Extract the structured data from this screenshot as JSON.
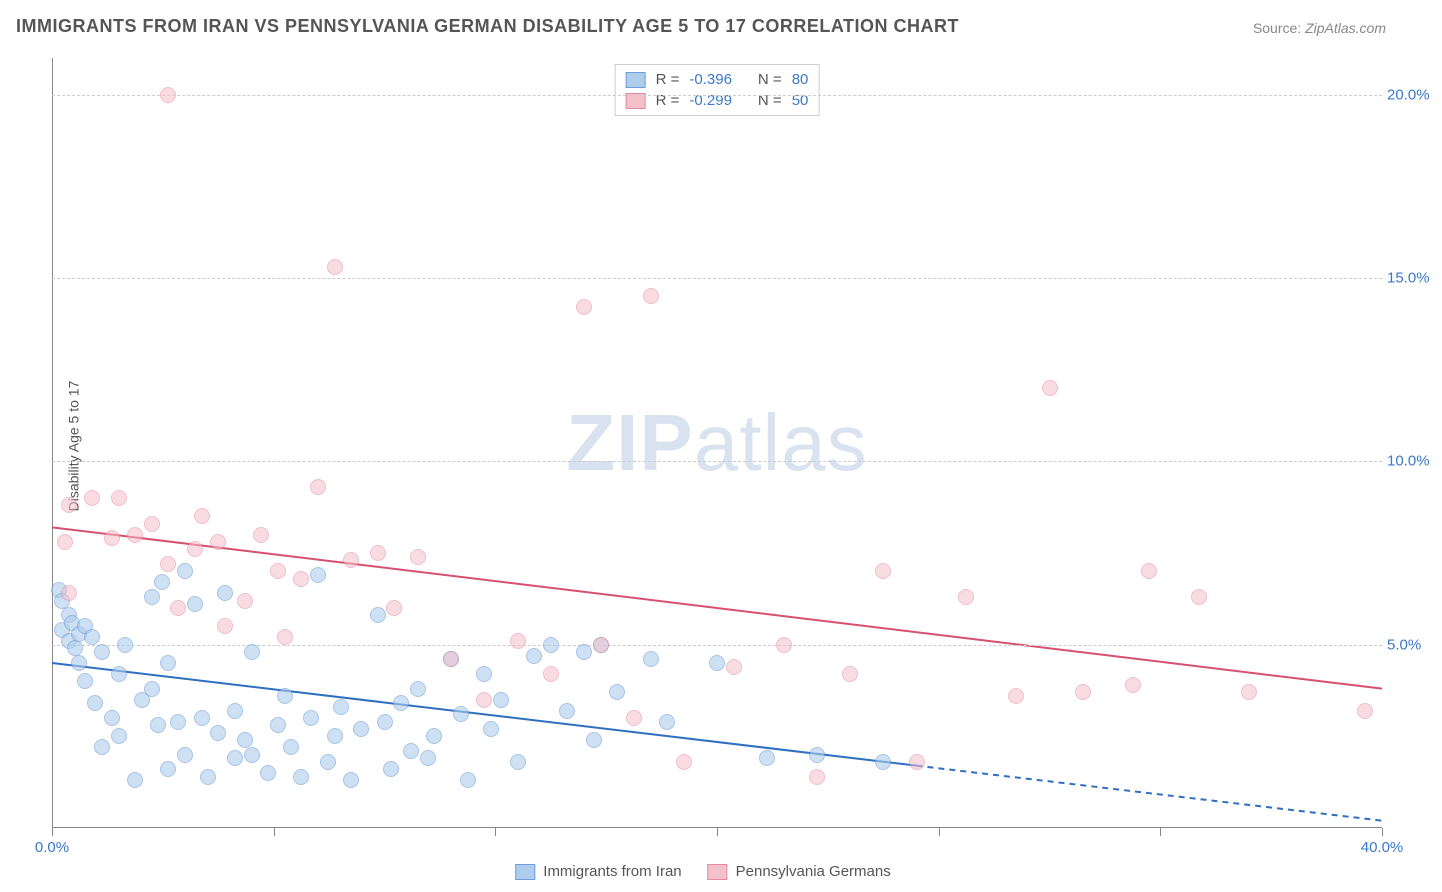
{
  "title": "IMMIGRANTS FROM IRAN VS PENNSYLVANIA GERMAN DISABILITY AGE 5 TO 17 CORRELATION CHART",
  "source_label": "Source:",
  "source_value": "ZipAtlas.com",
  "y_axis_label": "Disability Age 5 to 17",
  "watermark_a": "ZIP",
  "watermark_b": "atlas",
  "chart": {
    "type": "scatter",
    "xlim": [
      0,
      40
    ],
    "ylim": [
      0,
      21
    ],
    "x_ticks": [
      0,
      6.67,
      13.33,
      20,
      26.67,
      33.33,
      40
    ],
    "x_tick_labels_visible": {
      "0": "0.0%",
      "40": "40.0%"
    },
    "y_ticks": [
      5,
      10,
      15,
      20
    ],
    "y_tick_labels": [
      "5.0%",
      "10.0%",
      "15.0%",
      "20.0%"
    ],
    "tick_color": "#3a78c9",
    "grid_color": "#cccccc",
    "background_color": "#ffffff",
    "axis_color": "#888888",
    "point_radius": 8,
    "series": [
      {
        "id": "iran",
        "label": "Immigrants from Iran",
        "fill": "#aeccec",
        "stroke": "#6f9fd8",
        "fill_opacity": 0.6,
        "R": "-0.396",
        "N": "80",
        "trend": {
          "x1": 0,
          "y1": 4.5,
          "x2": 26,
          "y2": 1.7,
          "x2_dash": 40,
          "y2_dash": 0.2,
          "color": "#2e6fc1",
          "width": 2
        },
        "points": [
          [
            0.2,
            6.5
          ],
          [
            0.3,
            6.2
          ],
          [
            0.3,
            5.4
          ],
          [
            0.5,
            5.8
          ],
          [
            0.5,
            5.1
          ],
          [
            0.6,
            5.6
          ],
          [
            0.7,
            4.9
          ],
          [
            0.8,
            5.3
          ],
          [
            0.8,
            4.5
          ],
          [
            1.0,
            5.5
          ],
          [
            1.0,
            4.0
          ],
          [
            1.2,
            5.2
          ],
          [
            1.3,
            3.4
          ],
          [
            1.5,
            4.8
          ],
          [
            1.5,
            2.2
          ],
          [
            1.8,
            3.0
          ],
          [
            2.0,
            4.2
          ],
          [
            2.0,
            2.5
          ],
          [
            2.2,
            5.0
          ],
          [
            2.5,
            1.3
          ],
          [
            2.7,
            3.5
          ],
          [
            3.0,
            3.8
          ],
          [
            3.0,
            6.3
          ],
          [
            3.2,
            2.8
          ],
          [
            3.3,
            6.7
          ],
          [
            3.5,
            4.5
          ],
          [
            3.5,
            1.6
          ],
          [
            3.8,
            2.9
          ],
          [
            4.0,
            7.0
          ],
          [
            4.0,
            2.0
          ],
          [
            4.3,
            6.1
          ],
          [
            4.5,
            3.0
          ],
          [
            4.7,
            1.4
          ],
          [
            5.0,
            2.6
          ],
          [
            5.2,
            6.4
          ],
          [
            5.5,
            3.2
          ],
          [
            5.5,
            1.9
          ],
          [
            5.8,
            2.4
          ],
          [
            6.0,
            4.8
          ],
          [
            6.0,
            2.0
          ],
          [
            6.5,
            1.5
          ],
          [
            6.8,
            2.8
          ],
          [
            7.0,
            3.6
          ],
          [
            7.2,
            2.2
          ],
          [
            7.5,
            1.4
          ],
          [
            7.8,
            3.0
          ],
          [
            8.0,
            6.9
          ],
          [
            8.3,
            1.8
          ],
          [
            8.5,
            2.5
          ],
          [
            8.7,
            3.3
          ],
          [
            9.0,
            1.3
          ],
          [
            9.3,
            2.7
          ],
          [
            9.8,
            5.8
          ],
          [
            10.0,
            2.9
          ],
          [
            10.2,
            1.6
          ],
          [
            10.5,
            3.4
          ],
          [
            10.8,
            2.1
          ],
          [
            11.0,
            3.8
          ],
          [
            11.3,
            1.9
          ],
          [
            11.5,
            2.5
          ],
          [
            12.0,
            4.6
          ],
          [
            12.3,
            3.1
          ],
          [
            12.5,
            1.3
          ],
          [
            13.0,
            4.2
          ],
          [
            13.2,
            2.7
          ],
          [
            13.5,
            3.5
          ],
          [
            14.0,
            1.8
          ],
          [
            14.5,
            4.7
          ],
          [
            15.0,
            5.0
          ],
          [
            15.5,
            3.2
          ],
          [
            16.0,
            4.8
          ],
          [
            16.3,
            2.4
          ],
          [
            16.5,
            5.0
          ],
          [
            17.0,
            3.7
          ],
          [
            18.0,
            4.6
          ],
          [
            18.5,
            2.9
          ],
          [
            20.0,
            4.5
          ],
          [
            21.5,
            1.9
          ],
          [
            23.0,
            2.0
          ],
          [
            25.0,
            1.8
          ]
        ]
      },
      {
        "id": "pa_german",
        "label": "Pennsylvania Germans",
        "fill": "#f4c0ca",
        "stroke": "#e48aa0",
        "fill_opacity": 0.55,
        "R": "-0.299",
        "N": "50",
        "trend": {
          "x1": 0,
          "y1": 8.2,
          "x2": 40,
          "y2": 3.8,
          "color": "#d94f70",
          "width": 2
        },
        "points": [
          [
            0.4,
            7.8
          ],
          [
            0.5,
            8.8
          ],
          [
            0.5,
            6.4
          ],
          [
            1.2,
            9.0
          ],
          [
            1.8,
            7.9
          ],
          [
            2.0,
            9.0
          ],
          [
            2.5,
            8.0
          ],
          [
            3.0,
            8.3
          ],
          [
            3.5,
            7.2
          ],
          [
            3.5,
            20.0
          ],
          [
            3.8,
            6.0
          ],
          [
            4.3,
            7.6
          ],
          [
            4.5,
            8.5
          ],
          [
            5.0,
            7.8
          ],
          [
            5.2,
            5.5
          ],
          [
            5.8,
            6.2
          ],
          [
            6.3,
            8.0
          ],
          [
            6.8,
            7.0
          ],
          [
            7.0,
            5.2
          ],
          [
            7.5,
            6.8
          ],
          [
            8.0,
            9.3
          ],
          [
            8.5,
            15.3
          ],
          [
            9.0,
            7.3
          ],
          [
            9.8,
            7.5
          ],
          [
            10.3,
            6.0
          ],
          [
            11.0,
            7.4
          ],
          [
            12.0,
            4.6
          ],
          [
            13.0,
            3.5
          ],
          [
            14.0,
            5.1
          ],
          [
            15.0,
            4.2
          ],
          [
            16.0,
            14.2
          ],
          [
            16.5,
            5.0
          ],
          [
            17.5,
            3.0
          ],
          [
            18.0,
            14.5
          ],
          [
            19.0,
            1.8
          ],
          [
            20.5,
            4.4
          ],
          [
            22.0,
            5.0
          ],
          [
            23.0,
            1.4
          ],
          [
            24.0,
            4.2
          ],
          [
            25.0,
            7.0
          ],
          [
            26.0,
            1.8
          ],
          [
            27.5,
            6.3
          ],
          [
            29.0,
            3.6
          ],
          [
            30.0,
            12.0
          ],
          [
            31.0,
            3.7
          ],
          [
            32.5,
            3.9
          ],
          [
            33.0,
            7.0
          ],
          [
            34.5,
            6.3
          ],
          [
            36.0,
            3.7
          ],
          [
            39.5,
            3.2
          ]
        ]
      }
    ]
  },
  "stats_legend": {
    "r_label": "R =",
    "n_label": "N ="
  },
  "bottom_legend": true
}
